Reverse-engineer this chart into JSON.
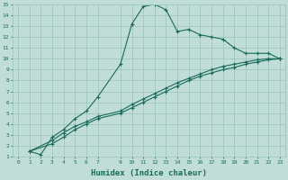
{
  "xlabel": "Humidex (Indice chaleur)",
  "bg_color": "#c0ddd8",
  "grid_color": "#9ec8c0",
  "line_color": "#1a6b5a",
  "xlim": [
    -0.5,
    23.5
  ],
  "ylim": [
    1,
    15
  ],
  "xticks": [
    0,
    1,
    2,
    3,
    4,
    5,
    6,
    7,
    9,
    10,
    11,
    12,
    13,
    14,
    15,
    16,
    17,
    18,
    19,
    20,
    21,
    22,
    23
  ],
  "yticks": [
    1,
    2,
    3,
    4,
    5,
    6,
    7,
    8,
    9,
    10,
    11,
    12,
    13,
    14,
    15
  ],
  "line1_x": [
    1,
    2,
    3,
    4,
    5,
    6,
    7,
    9,
    10,
    11,
    12,
    13,
    14,
    15,
    16,
    17,
    18,
    19,
    20,
    21,
    22,
    23
  ],
  "line1_y": [
    1.5,
    1.2,
    2.8,
    3.5,
    4.5,
    5.2,
    6.5,
    9.5,
    13.2,
    14.8,
    15.0,
    14.5,
    12.5,
    12.7,
    12.2,
    12.0,
    11.8,
    11.0,
    10.5,
    10.5,
    10.5,
    10.0
  ],
  "line2_x": [
    1,
    3,
    4,
    5,
    6,
    7,
    9,
    10,
    11,
    12,
    13,
    14,
    15,
    16,
    17,
    18,
    19,
    20,
    21,
    22,
    23
  ],
  "line2_y": [
    1.5,
    2.5,
    3.2,
    3.8,
    4.2,
    4.7,
    5.2,
    5.8,
    6.3,
    6.8,
    7.3,
    7.8,
    8.2,
    8.6,
    9.0,
    9.3,
    9.5,
    9.7,
    9.9,
    10.0,
    10.0
  ],
  "line3_x": [
    1,
    3,
    4,
    5,
    6,
    7,
    9,
    10,
    11,
    12,
    13,
    14,
    15,
    16,
    17,
    18,
    19,
    20,
    21,
    22,
    23
  ],
  "line3_y": [
    1.5,
    2.2,
    2.8,
    3.5,
    4.0,
    4.5,
    5.0,
    5.5,
    6.0,
    6.5,
    7.0,
    7.5,
    8.0,
    8.4,
    8.7,
    9.0,
    9.2,
    9.5,
    9.7,
    9.9,
    10.0
  ]
}
